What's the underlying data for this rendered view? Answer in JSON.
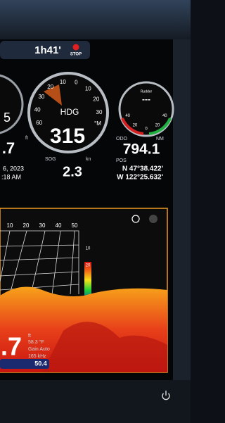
{
  "status_bar": {
    "timer": "1h41'",
    "stop": "STOP"
  },
  "gauges": {
    "left": {
      "value": "5",
      "unit": "ft",
      "depth": ".7",
      "date": "6, 2023",
      "time": ":18 AM"
    },
    "heading": {
      "scale": [
        "60",
        "40",
        "30",
        "20",
        "10",
        "0",
        "10",
        "20",
        "30"
      ],
      "label": "HDG",
      "value": "315",
      "unit": "°M"
    },
    "sog": {
      "label": "SOG",
      "unit": "kn",
      "value": "2.3"
    },
    "rudder": {
      "label": "Rudder",
      "value": "---",
      "scale": [
        "40",
        "20",
        "0",
        "20",
        "40"
      ]
    },
    "odo": {
      "label": "ODO",
      "unit": "NM",
      "value": "794.1"
    },
    "pos": {
      "label": "POS",
      "lat": "N 47°38.422'",
      "lon": "W 122°25.632'"
    }
  },
  "sonar": {
    "range_labels": [
      "10",
      "20",
      "30",
      "40",
      "50"
    ],
    "color_scale": [
      "10",
      "20"
    ],
    "depth": ".7",
    "depth_unit": "ft",
    "temp": "58.3 °F",
    "gain": "Gain Auto",
    "freq": "165 kHz",
    "speed": "50.4"
  }
}
